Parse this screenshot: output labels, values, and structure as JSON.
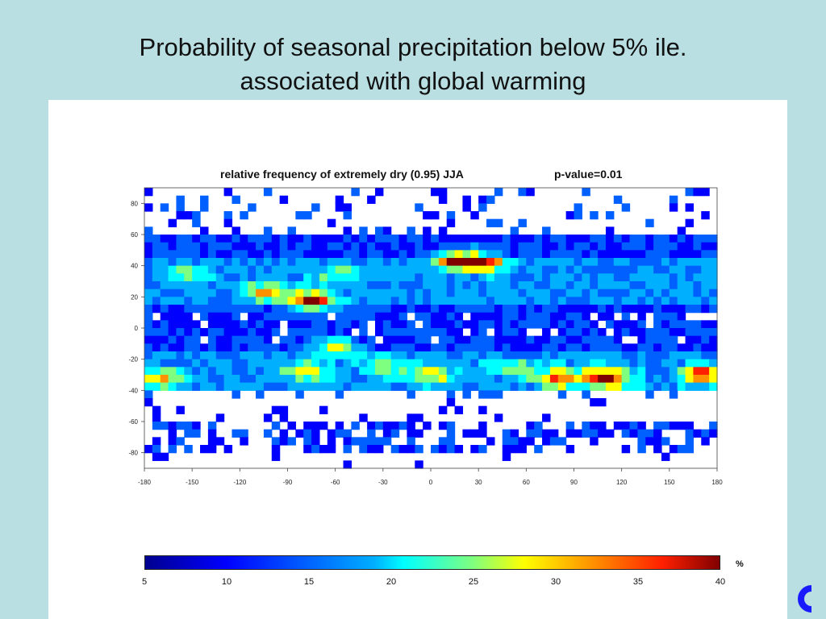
{
  "slide": {
    "title_line1": "Probability of seasonal precipitation below 5% ile.",
    "title_line2": "associated with global warming"
  },
  "chart_data": {
    "type": "heatmap",
    "title": "relative frequency of extremely dry (0.95) JJA",
    "annotation": "p-value=0.01",
    "x_ticks": [
      -180,
      -150,
      -120,
      -90,
      -60,
      -30,
      0,
      30,
      60,
      90,
      120,
      150,
      180
    ],
    "y_ticks": [
      80,
      60,
      40,
      20,
      0,
      -20,
      -40,
      -60,
      -80
    ],
    "xlim": [
      -180,
      180
    ],
    "ylim": [
      -90,
      90
    ],
    "colorbar": {
      "min": 5,
      "max": 40,
      "ticks": [
        5,
        10,
        15,
        20,
        25,
        30,
        35,
        40
      ],
      "unit": "%",
      "colors": [
        "#00008f",
        "#0000ff",
        "#0060ff",
        "#00b0ff",
        "#00ffff",
        "#7fff7f",
        "#ffff00",
        "#ff9000",
        "#ff2000",
        "#800000"
      ]
    },
    "hotspots": [
      {
        "lon": 15,
        "lat": 43,
        "value": 35
      },
      {
        "lon": 35,
        "lat": 42,
        "value": 30
      },
      {
        "lon": -75,
        "lat": 17,
        "value": 37
      },
      {
        "lon": -105,
        "lat": 23,
        "value": 27
      },
      {
        "lon": 110,
        "lat": -32,
        "value": 37
      },
      {
        "lon": 80,
        "lat": -32,
        "value": 30
      },
      {
        "lon": 170,
        "lat": -30,
        "value": 33
      },
      {
        "lon": -170,
        "lat": -32,
        "value": 27
      },
      {
        "lon": 0,
        "lat": -30,
        "value": 25
      },
      {
        "lon": -60,
        "lat": -12,
        "value": 25
      },
      {
        "lon": -80,
        "lat": -28,
        "value": 25
      },
      {
        "lon": -30,
        "lat": -25,
        "value": 22
      },
      {
        "lon": -150,
        "lat": 35,
        "value": 20
      },
      {
        "lon": -60,
        "lat": 35,
        "value": 20
      },
      {
        "lon": 50,
        "lat": -25,
        "value": 20
      }
    ],
    "missing_bands": [
      {
        "lat_from": -58,
        "lat_to": -41
      },
      {
        "lat_from": -90,
        "lat_to": -80
      }
    ]
  },
  "colors": {
    "background": "#b9dfe3",
    "panel": "#ffffff"
  },
  "logo_icon": "organisation-logo"
}
